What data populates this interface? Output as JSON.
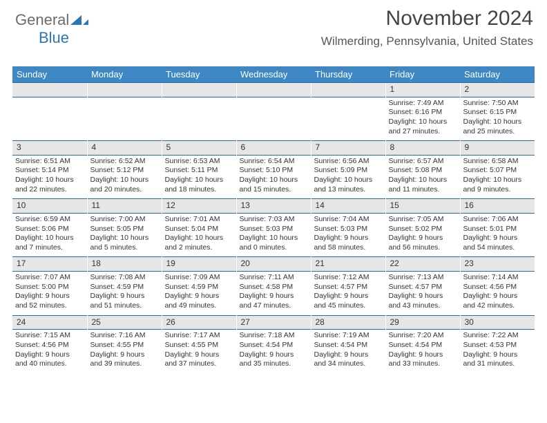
{
  "brand": {
    "name_part1": "General",
    "name_part2": "Blue"
  },
  "header": {
    "month_year": "November 2024",
    "location": "Wilmerding, Pennsylvania, United States"
  },
  "colors": {
    "header_bg": "#3c87c4",
    "header_text": "#ffffff",
    "daynum_bg": "#e6e6e6",
    "rule": "#2b6aa0",
    "brand_blue": "#2b77b5",
    "text": "#333333"
  },
  "days_of_week": [
    "Sunday",
    "Monday",
    "Tuesday",
    "Wednesday",
    "Thursday",
    "Friday",
    "Saturday"
  ],
  "weeks": [
    [
      null,
      null,
      null,
      null,
      null,
      {
        "n": "1",
        "sr": "Sunrise: 7:49 AM",
        "ss": "Sunset: 6:16 PM",
        "d1": "Daylight: 10 hours",
        "d2": "and 27 minutes."
      },
      {
        "n": "2",
        "sr": "Sunrise: 7:50 AM",
        "ss": "Sunset: 6:15 PM",
        "d1": "Daylight: 10 hours",
        "d2": "and 25 minutes."
      }
    ],
    [
      {
        "n": "3",
        "sr": "Sunrise: 6:51 AM",
        "ss": "Sunset: 5:14 PM",
        "d1": "Daylight: 10 hours",
        "d2": "and 22 minutes."
      },
      {
        "n": "4",
        "sr": "Sunrise: 6:52 AM",
        "ss": "Sunset: 5:12 PM",
        "d1": "Daylight: 10 hours",
        "d2": "and 20 minutes."
      },
      {
        "n": "5",
        "sr": "Sunrise: 6:53 AM",
        "ss": "Sunset: 5:11 PM",
        "d1": "Daylight: 10 hours",
        "d2": "and 18 minutes."
      },
      {
        "n": "6",
        "sr": "Sunrise: 6:54 AM",
        "ss": "Sunset: 5:10 PM",
        "d1": "Daylight: 10 hours",
        "d2": "and 15 minutes."
      },
      {
        "n": "7",
        "sr": "Sunrise: 6:56 AM",
        "ss": "Sunset: 5:09 PM",
        "d1": "Daylight: 10 hours",
        "d2": "and 13 minutes."
      },
      {
        "n": "8",
        "sr": "Sunrise: 6:57 AM",
        "ss": "Sunset: 5:08 PM",
        "d1": "Daylight: 10 hours",
        "d2": "and 11 minutes."
      },
      {
        "n": "9",
        "sr": "Sunrise: 6:58 AM",
        "ss": "Sunset: 5:07 PM",
        "d1": "Daylight: 10 hours",
        "d2": "and 9 minutes."
      }
    ],
    [
      {
        "n": "10",
        "sr": "Sunrise: 6:59 AM",
        "ss": "Sunset: 5:06 PM",
        "d1": "Daylight: 10 hours",
        "d2": "and 7 minutes."
      },
      {
        "n": "11",
        "sr": "Sunrise: 7:00 AM",
        "ss": "Sunset: 5:05 PM",
        "d1": "Daylight: 10 hours",
        "d2": "and 5 minutes."
      },
      {
        "n": "12",
        "sr": "Sunrise: 7:01 AM",
        "ss": "Sunset: 5:04 PM",
        "d1": "Daylight: 10 hours",
        "d2": "and 2 minutes."
      },
      {
        "n": "13",
        "sr": "Sunrise: 7:03 AM",
        "ss": "Sunset: 5:03 PM",
        "d1": "Daylight: 10 hours",
        "d2": "and 0 minutes."
      },
      {
        "n": "14",
        "sr": "Sunrise: 7:04 AM",
        "ss": "Sunset: 5:03 PM",
        "d1": "Daylight: 9 hours",
        "d2": "and 58 minutes."
      },
      {
        "n": "15",
        "sr": "Sunrise: 7:05 AM",
        "ss": "Sunset: 5:02 PM",
        "d1": "Daylight: 9 hours",
        "d2": "and 56 minutes."
      },
      {
        "n": "16",
        "sr": "Sunrise: 7:06 AM",
        "ss": "Sunset: 5:01 PM",
        "d1": "Daylight: 9 hours",
        "d2": "and 54 minutes."
      }
    ],
    [
      {
        "n": "17",
        "sr": "Sunrise: 7:07 AM",
        "ss": "Sunset: 5:00 PM",
        "d1": "Daylight: 9 hours",
        "d2": "and 52 minutes."
      },
      {
        "n": "18",
        "sr": "Sunrise: 7:08 AM",
        "ss": "Sunset: 4:59 PM",
        "d1": "Daylight: 9 hours",
        "d2": "and 51 minutes."
      },
      {
        "n": "19",
        "sr": "Sunrise: 7:09 AM",
        "ss": "Sunset: 4:59 PM",
        "d1": "Daylight: 9 hours",
        "d2": "and 49 minutes."
      },
      {
        "n": "20",
        "sr": "Sunrise: 7:11 AM",
        "ss": "Sunset: 4:58 PM",
        "d1": "Daylight: 9 hours",
        "d2": "and 47 minutes."
      },
      {
        "n": "21",
        "sr": "Sunrise: 7:12 AM",
        "ss": "Sunset: 4:57 PM",
        "d1": "Daylight: 9 hours",
        "d2": "and 45 minutes."
      },
      {
        "n": "22",
        "sr": "Sunrise: 7:13 AM",
        "ss": "Sunset: 4:57 PM",
        "d1": "Daylight: 9 hours",
        "d2": "and 43 minutes."
      },
      {
        "n": "23",
        "sr": "Sunrise: 7:14 AM",
        "ss": "Sunset: 4:56 PM",
        "d1": "Daylight: 9 hours",
        "d2": "and 42 minutes."
      }
    ],
    [
      {
        "n": "24",
        "sr": "Sunrise: 7:15 AM",
        "ss": "Sunset: 4:56 PM",
        "d1": "Daylight: 9 hours",
        "d2": "and 40 minutes."
      },
      {
        "n": "25",
        "sr": "Sunrise: 7:16 AM",
        "ss": "Sunset: 4:55 PM",
        "d1": "Daylight: 9 hours",
        "d2": "and 39 minutes."
      },
      {
        "n": "26",
        "sr": "Sunrise: 7:17 AM",
        "ss": "Sunset: 4:55 PM",
        "d1": "Daylight: 9 hours",
        "d2": "and 37 minutes."
      },
      {
        "n": "27",
        "sr": "Sunrise: 7:18 AM",
        "ss": "Sunset: 4:54 PM",
        "d1": "Daylight: 9 hours",
        "d2": "and 35 minutes."
      },
      {
        "n": "28",
        "sr": "Sunrise: 7:19 AM",
        "ss": "Sunset: 4:54 PM",
        "d1": "Daylight: 9 hours",
        "d2": "and 34 minutes."
      },
      {
        "n": "29",
        "sr": "Sunrise: 7:20 AM",
        "ss": "Sunset: 4:54 PM",
        "d1": "Daylight: 9 hours",
        "d2": "and 33 minutes."
      },
      {
        "n": "30",
        "sr": "Sunrise: 7:22 AM",
        "ss": "Sunset: 4:53 PM",
        "d1": "Daylight: 9 hours",
        "d2": "and 31 minutes."
      }
    ]
  ]
}
